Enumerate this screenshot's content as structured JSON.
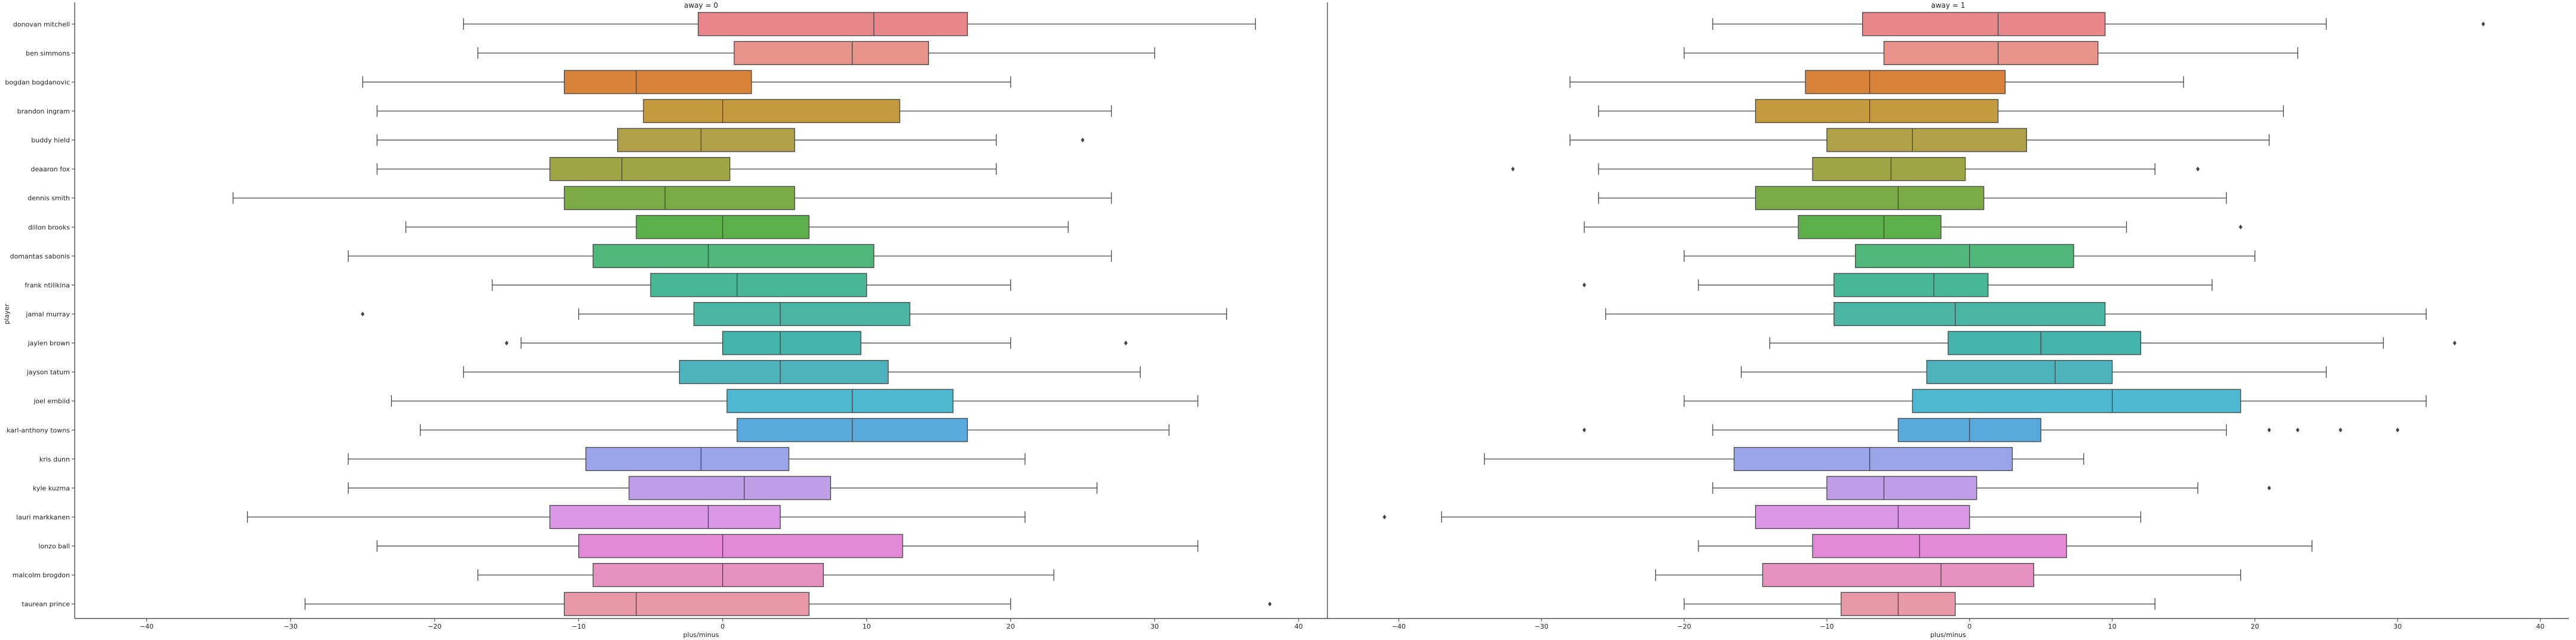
{
  "chart_data": {
    "type": "box",
    "orientation": "horizontal",
    "ylabel": "player",
    "xlabel": "plus/minus",
    "xlim": [
      -45,
      42
    ],
    "xticks": [
      -40,
      -30,
      -20,
      -10,
      0,
      10,
      20,
      30,
      40
    ],
    "grid": false,
    "legend": "none",
    "players": [
      "donovan mitchell",
      "ben simmons",
      "bogdan bogdanovic",
      "brandon ingram",
      "buddy hield",
      "deaaron fox",
      "dennis smith",
      "dillon brooks",
      "domantas sabonis",
      "frank ntilikina",
      "jamal murray",
      "jaylen brown",
      "jayson tatum",
      "joel embiid",
      "karl-anthony towns",
      "kris dunn",
      "kyle kuzma",
      "lauri markkanen",
      "lonzo ball",
      "malcolm brogdon",
      "taurean prince"
    ],
    "colors": [
      "#e8868a",
      "#e8938a",
      "#d8833a",
      "#c49a3f",
      "#b0a04a",
      "#9ea544",
      "#7aab44",
      "#5daf4a",
      "#4fb77a",
      "#47b796",
      "#49b5a2",
      "#42b4aa",
      "#4cb3bc",
      "#4db8d0",
      "#5aa9dd",
      "#9aa4e8",
      "#bf9ee8",
      "#da97e6",
      "#e389d8",
      "#e692c0",
      "#e899a8"
    ],
    "facets": [
      {
        "title": "away = 0",
        "boxes": [
          {
            "whislo": -18,
            "q1": -1.7,
            "med": 10.5,
            "q3": 17,
            "whishi": 37,
            "fliers": []
          },
          {
            "whislo": -17,
            "q1": 0.8,
            "med": 9,
            "q3": 14.3,
            "whishi": 30,
            "fliers": []
          },
          {
            "whislo": -25,
            "q1": -11,
            "med": -6,
            "q3": 2,
            "whishi": 20,
            "fliers": []
          },
          {
            "whislo": -24,
            "q1": -5.5,
            "med": 0,
            "q3": 12.3,
            "whishi": 27,
            "fliers": []
          },
          {
            "whislo": -24,
            "q1": -7.3,
            "med": -1.5,
            "q3": 5,
            "whishi": 19,
            "fliers": [
              25
            ]
          },
          {
            "whislo": -24,
            "q1": -12,
            "med": -7,
            "q3": 0.5,
            "whishi": 19,
            "fliers": []
          },
          {
            "whislo": -34,
            "q1": -11,
            "med": -4,
            "q3": 5,
            "whishi": 27,
            "fliers": []
          },
          {
            "whislo": -22,
            "q1": -6,
            "med": 0,
            "q3": 6,
            "whishi": 24,
            "fliers": []
          },
          {
            "whislo": -26,
            "q1": -9,
            "med": -1,
            "q3": 10.5,
            "whishi": 27,
            "fliers": []
          },
          {
            "whislo": -16,
            "q1": -5,
            "med": 1,
            "q3": 10,
            "whishi": 20,
            "fliers": []
          },
          {
            "whislo": -10,
            "q1": -2,
            "med": 4,
            "q3": 13,
            "whishi": 35,
            "fliers": [
              -25
            ]
          },
          {
            "whislo": -14,
            "q1": 0,
            "med": 4,
            "q3": 9.6,
            "whishi": 20,
            "fliers": [
              -15,
              28
            ]
          },
          {
            "whislo": -18,
            "q1": -3,
            "med": 4,
            "q3": 11.5,
            "whishi": 29,
            "fliers": []
          },
          {
            "whislo": -23,
            "q1": 0.3,
            "med": 9,
            "q3": 16,
            "whishi": 33,
            "fliers": []
          },
          {
            "whislo": -21,
            "q1": 1,
            "med": 9,
            "q3": 17,
            "whishi": 31,
            "fliers": []
          },
          {
            "whislo": -26,
            "q1": -9.5,
            "med": -1.5,
            "q3": 4.6,
            "whishi": 21,
            "fliers": []
          },
          {
            "whislo": -26,
            "q1": -6.5,
            "med": 1.5,
            "q3": 7.5,
            "whishi": 26,
            "fliers": []
          },
          {
            "whislo": -33,
            "q1": -12,
            "med": -1,
            "q3": 4,
            "whishi": 21,
            "fliers": []
          },
          {
            "whislo": -24,
            "q1": -10,
            "med": 0,
            "q3": 12.5,
            "whishi": 33,
            "fliers": []
          },
          {
            "whislo": -17,
            "q1": -9,
            "med": 0,
            "q3": 7,
            "whishi": 23,
            "fliers": []
          },
          {
            "whislo": -29,
            "q1": -11,
            "med": -6,
            "q3": 6,
            "whishi": 20,
            "fliers": [
              38
            ]
          }
        ]
      },
      {
        "title": "away = 1",
        "boxes": [
          {
            "whislo": -18,
            "q1": -7.5,
            "med": 2,
            "q3": 9.5,
            "whishi": 25,
            "fliers": [
              36
            ]
          },
          {
            "whislo": -20,
            "q1": -6,
            "med": 2,
            "q3": 9,
            "whishi": 23,
            "fliers": []
          },
          {
            "whislo": -28,
            "q1": -11.5,
            "med": -7,
            "q3": 2.5,
            "whishi": 15,
            "fliers": []
          },
          {
            "whislo": -26,
            "q1": -15,
            "med": -7,
            "q3": 2,
            "whishi": 22,
            "fliers": []
          },
          {
            "whislo": -28,
            "q1": -10,
            "med": -4,
            "q3": 4,
            "whishi": 21,
            "fliers": []
          },
          {
            "whislo": -26,
            "q1": -11,
            "med": -5.5,
            "q3": -0.3,
            "whishi": 13,
            "fliers": [
              -32,
              16
            ]
          },
          {
            "whislo": -26,
            "q1": -15,
            "med": -5,
            "q3": 1,
            "whishi": 18,
            "fliers": []
          },
          {
            "whislo": -27,
            "q1": -12,
            "med": -6,
            "q3": -2,
            "whishi": 11,
            "fliers": [
              19
            ]
          },
          {
            "whislo": -20,
            "q1": -8,
            "med": 0,
            "q3": 7.3,
            "whishi": 20,
            "fliers": []
          },
          {
            "whislo": -19,
            "q1": -9.5,
            "med": -2.5,
            "q3": 1.3,
            "whishi": 17,
            "fliers": [
              -27
            ]
          },
          {
            "whislo": -25.5,
            "q1": -9.5,
            "med": -1,
            "q3": 9.5,
            "whishi": 32,
            "fliers": []
          },
          {
            "whislo": -14,
            "q1": -1.5,
            "med": 5,
            "q3": 12,
            "whishi": 29,
            "fliers": [
              34
            ]
          },
          {
            "whislo": -16,
            "q1": -3,
            "med": 6,
            "q3": 10,
            "whishi": 25,
            "fliers": []
          },
          {
            "whislo": -20,
            "q1": -4,
            "med": 10,
            "q3": 19,
            "whishi": 32,
            "fliers": []
          },
          {
            "whislo": -18,
            "q1": -5,
            "med": 0,
            "q3": 5,
            "whishi": 18,
            "fliers": [
              -27,
              21,
              23,
              26,
              30
            ]
          },
          {
            "whislo": -34,
            "q1": -16.5,
            "med": -7,
            "q3": 3,
            "whishi": 8,
            "fliers": []
          },
          {
            "whislo": -18,
            "q1": -10,
            "med": -6,
            "q3": 0.5,
            "whishi": 16,
            "fliers": [
              21
            ]
          },
          {
            "whislo": -37,
            "q1": -15,
            "med": -5,
            "q3": 0,
            "whishi": 12,
            "fliers": [
              -41
            ]
          },
          {
            "whislo": -19,
            "q1": -11,
            "med": -3.5,
            "q3": 6.8,
            "whishi": 24,
            "fliers": []
          },
          {
            "whislo": -22,
            "q1": -14.5,
            "med": -2,
            "q3": 4.5,
            "whishi": 19,
            "fliers": []
          },
          {
            "whislo": -20,
            "q1": -9,
            "med": -5,
            "q3": -1,
            "whishi": 13,
            "fliers": []
          }
        ]
      }
    ]
  }
}
